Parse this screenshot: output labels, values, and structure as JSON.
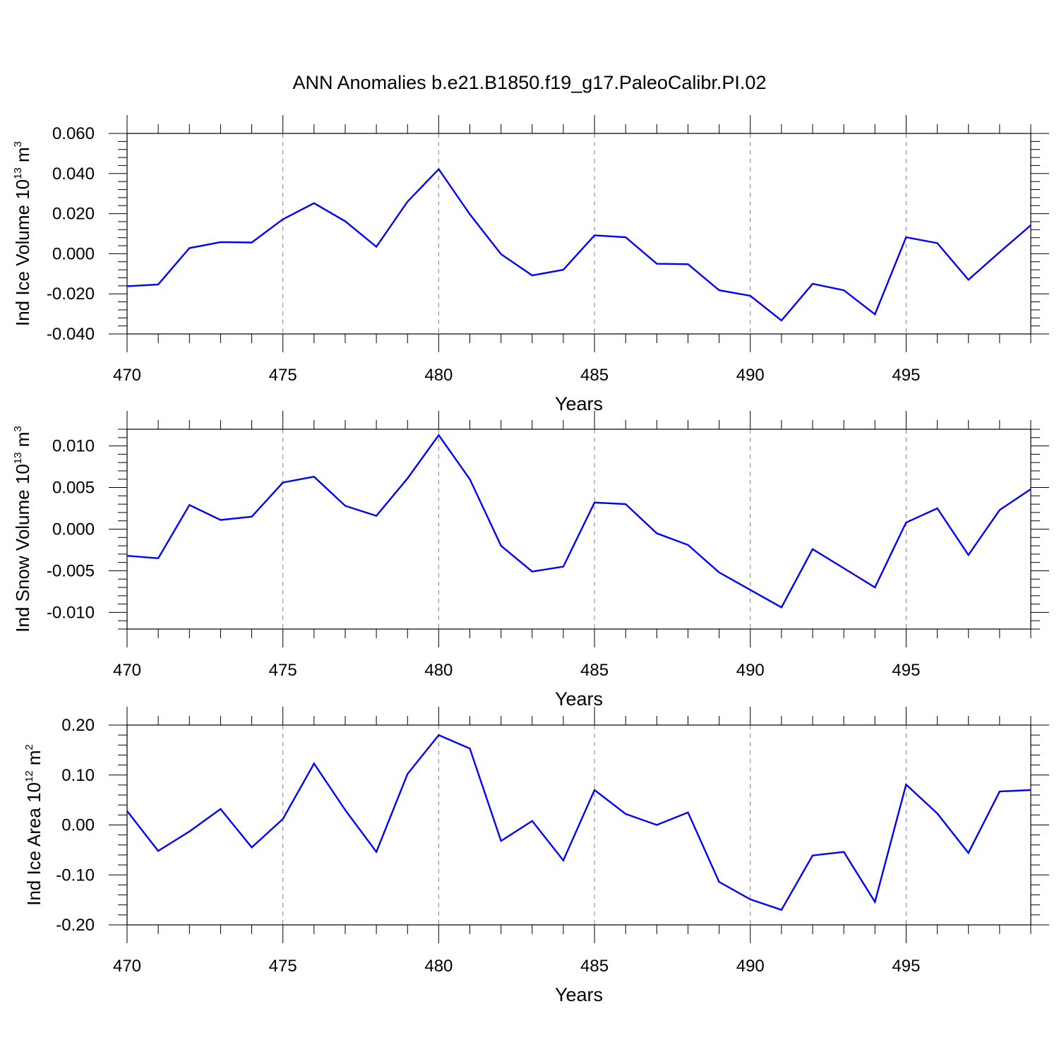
{
  "title": "ANN Anomalies b.e21.B1850.f19_g17.PaleoCalibr.PI.02",
  "colors": {
    "line": "#0000ff",
    "axis": "#000000",
    "grid": "#808080"
  },
  "chart_data": [
    {
      "type": "line",
      "title": "ANN Anomalies b.e21.B1850.f19_g17.PaleoCalibr.PI.02",
      "xlabel": "Years",
      "ylabel": {
        "text": "Ind Ice Volume 10",
        "sup": "13",
        "unit": " m",
        "unit_sup": "3"
      },
      "xlim": [
        470,
        499
      ],
      "ylim": [
        -0.04,
        0.06
      ],
      "xticks": [
        "470",
        "475",
        "480",
        "485",
        "490",
        "495"
      ],
      "xtick_values": [
        470,
        475,
        480,
        485,
        490,
        495
      ],
      "yticks": [
        "-0.040",
        "-0.020",
        "0.000",
        "0.020",
        "0.040",
        "0.060"
      ],
      "ytick_values": [
        -0.04,
        -0.02,
        0.0,
        0.02,
        0.04,
        0.06
      ],
      "grid": "vertical dashed at major x ticks",
      "x": [
        470,
        471,
        472,
        473,
        474,
        475,
        476,
        477,
        478,
        479,
        480,
        481,
        482,
        483,
        484,
        485,
        486,
        487,
        488,
        489,
        490,
        491,
        492,
        493,
        494,
        495,
        496,
        497,
        498,
        499
      ],
      "values": [
        -0.0162,
        -0.0153,
        0.0028,
        0.0058,
        0.0056,
        0.0172,
        0.0252,
        0.0162,
        0.0035,
        0.026,
        0.0422,
        0.0197,
        -0.0002,
        -0.0108,
        -0.008,
        0.0092,
        0.0082,
        -0.005,
        -0.0052,
        -0.0182,
        -0.021,
        -0.0333,
        -0.015,
        -0.0182,
        -0.0302,
        0.0082,
        0.0053,
        -0.013,
        0.0008,
        0.0142
      ]
    },
    {
      "type": "line",
      "xlabel": "Years",
      "ylabel": {
        "text": "Ind Snow Volume 10",
        "sup": "13",
        "unit": " m",
        "unit_sup": "3"
      },
      "xlim": [
        470,
        499
      ],
      "ylim": [
        -0.012,
        0.012
      ],
      "xticks": [
        "470",
        "475",
        "480",
        "485",
        "490",
        "495"
      ],
      "xtick_values": [
        470,
        475,
        480,
        485,
        490,
        495
      ],
      "yticks": [
        "-0.010",
        "-0.005",
        "0.000",
        "0.005",
        "0.010"
      ],
      "ytick_values": [
        -0.01,
        -0.005,
        0.0,
        0.005,
        0.01
      ],
      "grid": "vertical dashed at major x ticks",
      "x": [
        470,
        471,
        472,
        473,
        474,
        475,
        476,
        477,
        478,
        479,
        480,
        481,
        482,
        483,
        484,
        485,
        486,
        487,
        488,
        489,
        490,
        491,
        492,
        493,
        494,
        495,
        496,
        497,
        498,
        499
      ],
      "values": [
        -0.0032,
        -0.0035,
        0.0029,
        0.0011,
        0.0015,
        0.0056,
        0.0063,
        0.0028,
        0.0016,
        0.0061,
        0.0113,
        0.006,
        -0.002,
        -0.0051,
        -0.0045,
        0.0032,
        0.003,
        -0.0005,
        -0.0019,
        -0.0052,
        -0.0073,
        -0.0094,
        -0.0024,
        -0.0047,
        -0.007,
        0.0008,
        0.0025,
        -0.0031,
        0.0023,
        0.0048
      ]
    },
    {
      "type": "line",
      "xlabel": "Years",
      "ylabel": {
        "text": "Ind Ice Area 10",
        "sup": "12",
        "unit": " m",
        "unit_sup": "2"
      },
      "xlim": [
        470,
        499
      ],
      "ylim": [
        -0.2,
        0.2
      ],
      "xticks": [
        "470",
        "475",
        "480",
        "485",
        "490",
        "495"
      ],
      "xtick_values": [
        470,
        475,
        480,
        485,
        490,
        495
      ],
      "yticks": [
        "-0.20",
        "-0.10",
        "0.00",
        "0.10",
        "0.20"
      ],
      "ytick_values": [
        -0.2,
        -0.1,
        0.0,
        0.1,
        0.2
      ],
      "grid": "vertical dashed at major x ticks",
      "x": [
        470,
        471,
        472,
        473,
        474,
        475,
        476,
        477,
        478,
        479,
        480,
        481,
        482,
        483,
        484,
        485,
        486,
        487,
        488,
        489,
        490,
        491,
        492,
        493,
        494,
        495,
        496,
        497,
        498,
        499
      ],
      "values": [
        0.028,
        -0.052,
        -0.013,
        0.032,
        -0.045,
        0.012,
        0.123,
        0.03,
        -0.054,
        0.102,
        0.18,
        0.153,
        -0.032,
        0.008,
        -0.071,
        0.07,
        0.022,
        0.0,
        0.025,
        -0.114,
        -0.149,
        -0.17,
        -0.061,
        -0.054,
        -0.154,
        0.081,
        0.023,
        -0.056,
        0.067,
        0.07
      ]
    }
  ]
}
